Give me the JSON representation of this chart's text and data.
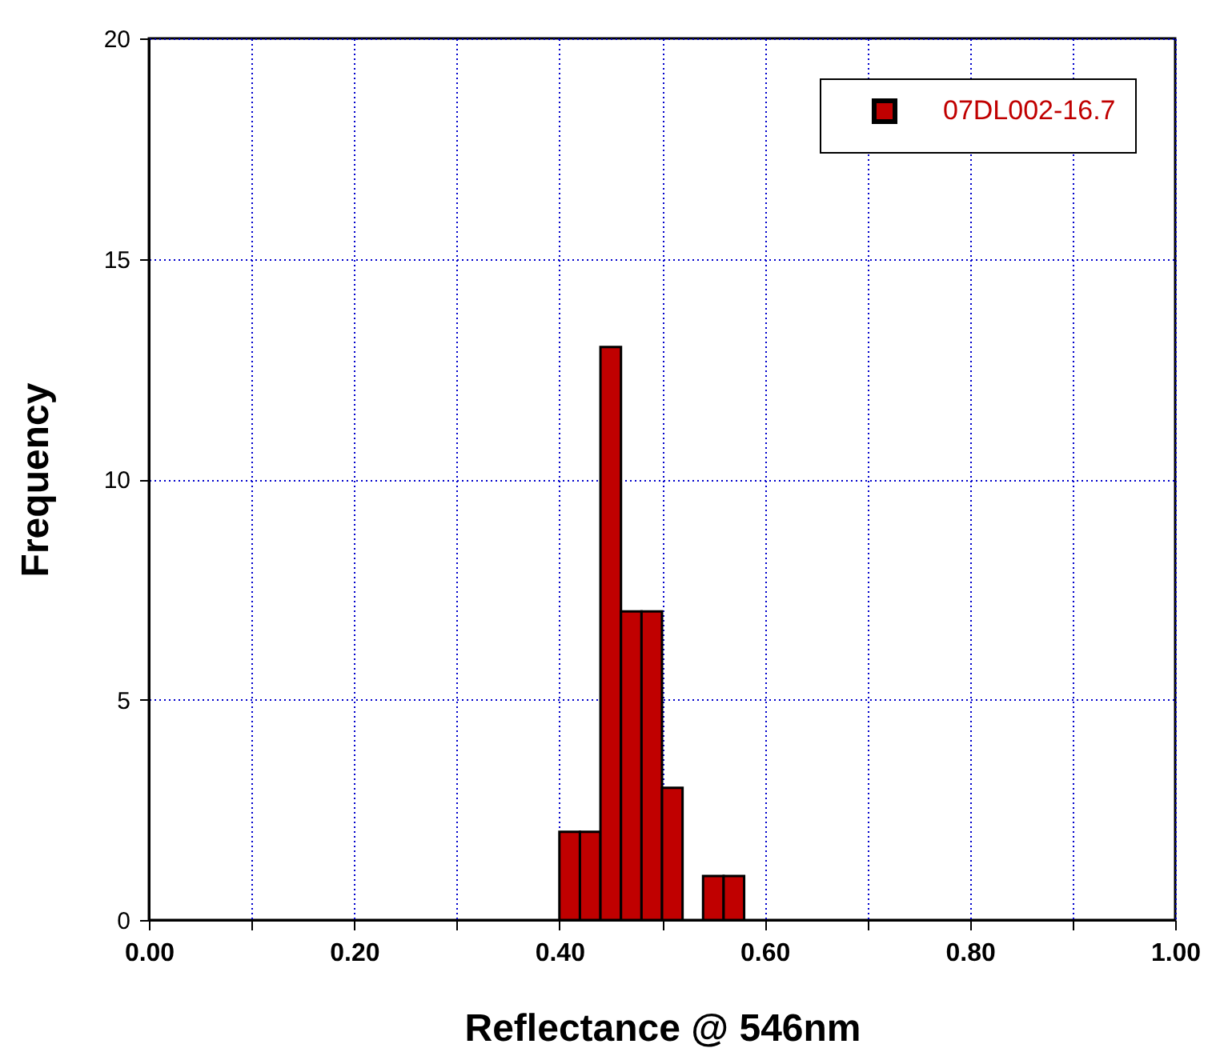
{
  "chart_data": {
    "type": "histogram",
    "xlabel": "Reflectance @ 546nm",
    "ylabel": "Frequency",
    "bins": [
      0.4,
      0.42,
      0.44,
      0.46,
      0.48,
      0.5,
      0.52,
      0.54,
      0.56,
      0.58
    ],
    "series": [
      {
        "name": "07DL002-16.7",
        "color": "#c00000",
        "values": [
          2,
          2,
          13,
          7,
          7,
          3,
          0,
          1,
          1
        ]
      }
    ],
    "xlim": [
      0,
      1
    ],
    "ylim": [
      0,
      20
    ],
    "xticks": [
      {
        "value": 0,
        "label": "0.00"
      },
      {
        "value": 0.1,
        "label": null
      },
      {
        "value": 0.2,
        "label": "0.20"
      },
      {
        "value": 0.3,
        "label": null
      },
      {
        "value": 0.4,
        "label": "0.40"
      },
      {
        "value": 0.5,
        "label": null
      },
      {
        "value": 0.6,
        "label": "0.60"
      },
      {
        "value": 0.7,
        "label": null
      },
      {
        "value": 0.8,
        "label": "0.80"
      },
      {
        "value": 0.9,
        "label": null
      },
      {
        "value": 1,
        "label": "1.00"
      }
    ],
    "yticks": [
      0,
      5,
      10,
      15,
      20
    ],
    "grid": true,
    "legend": "top right"
  }
}
